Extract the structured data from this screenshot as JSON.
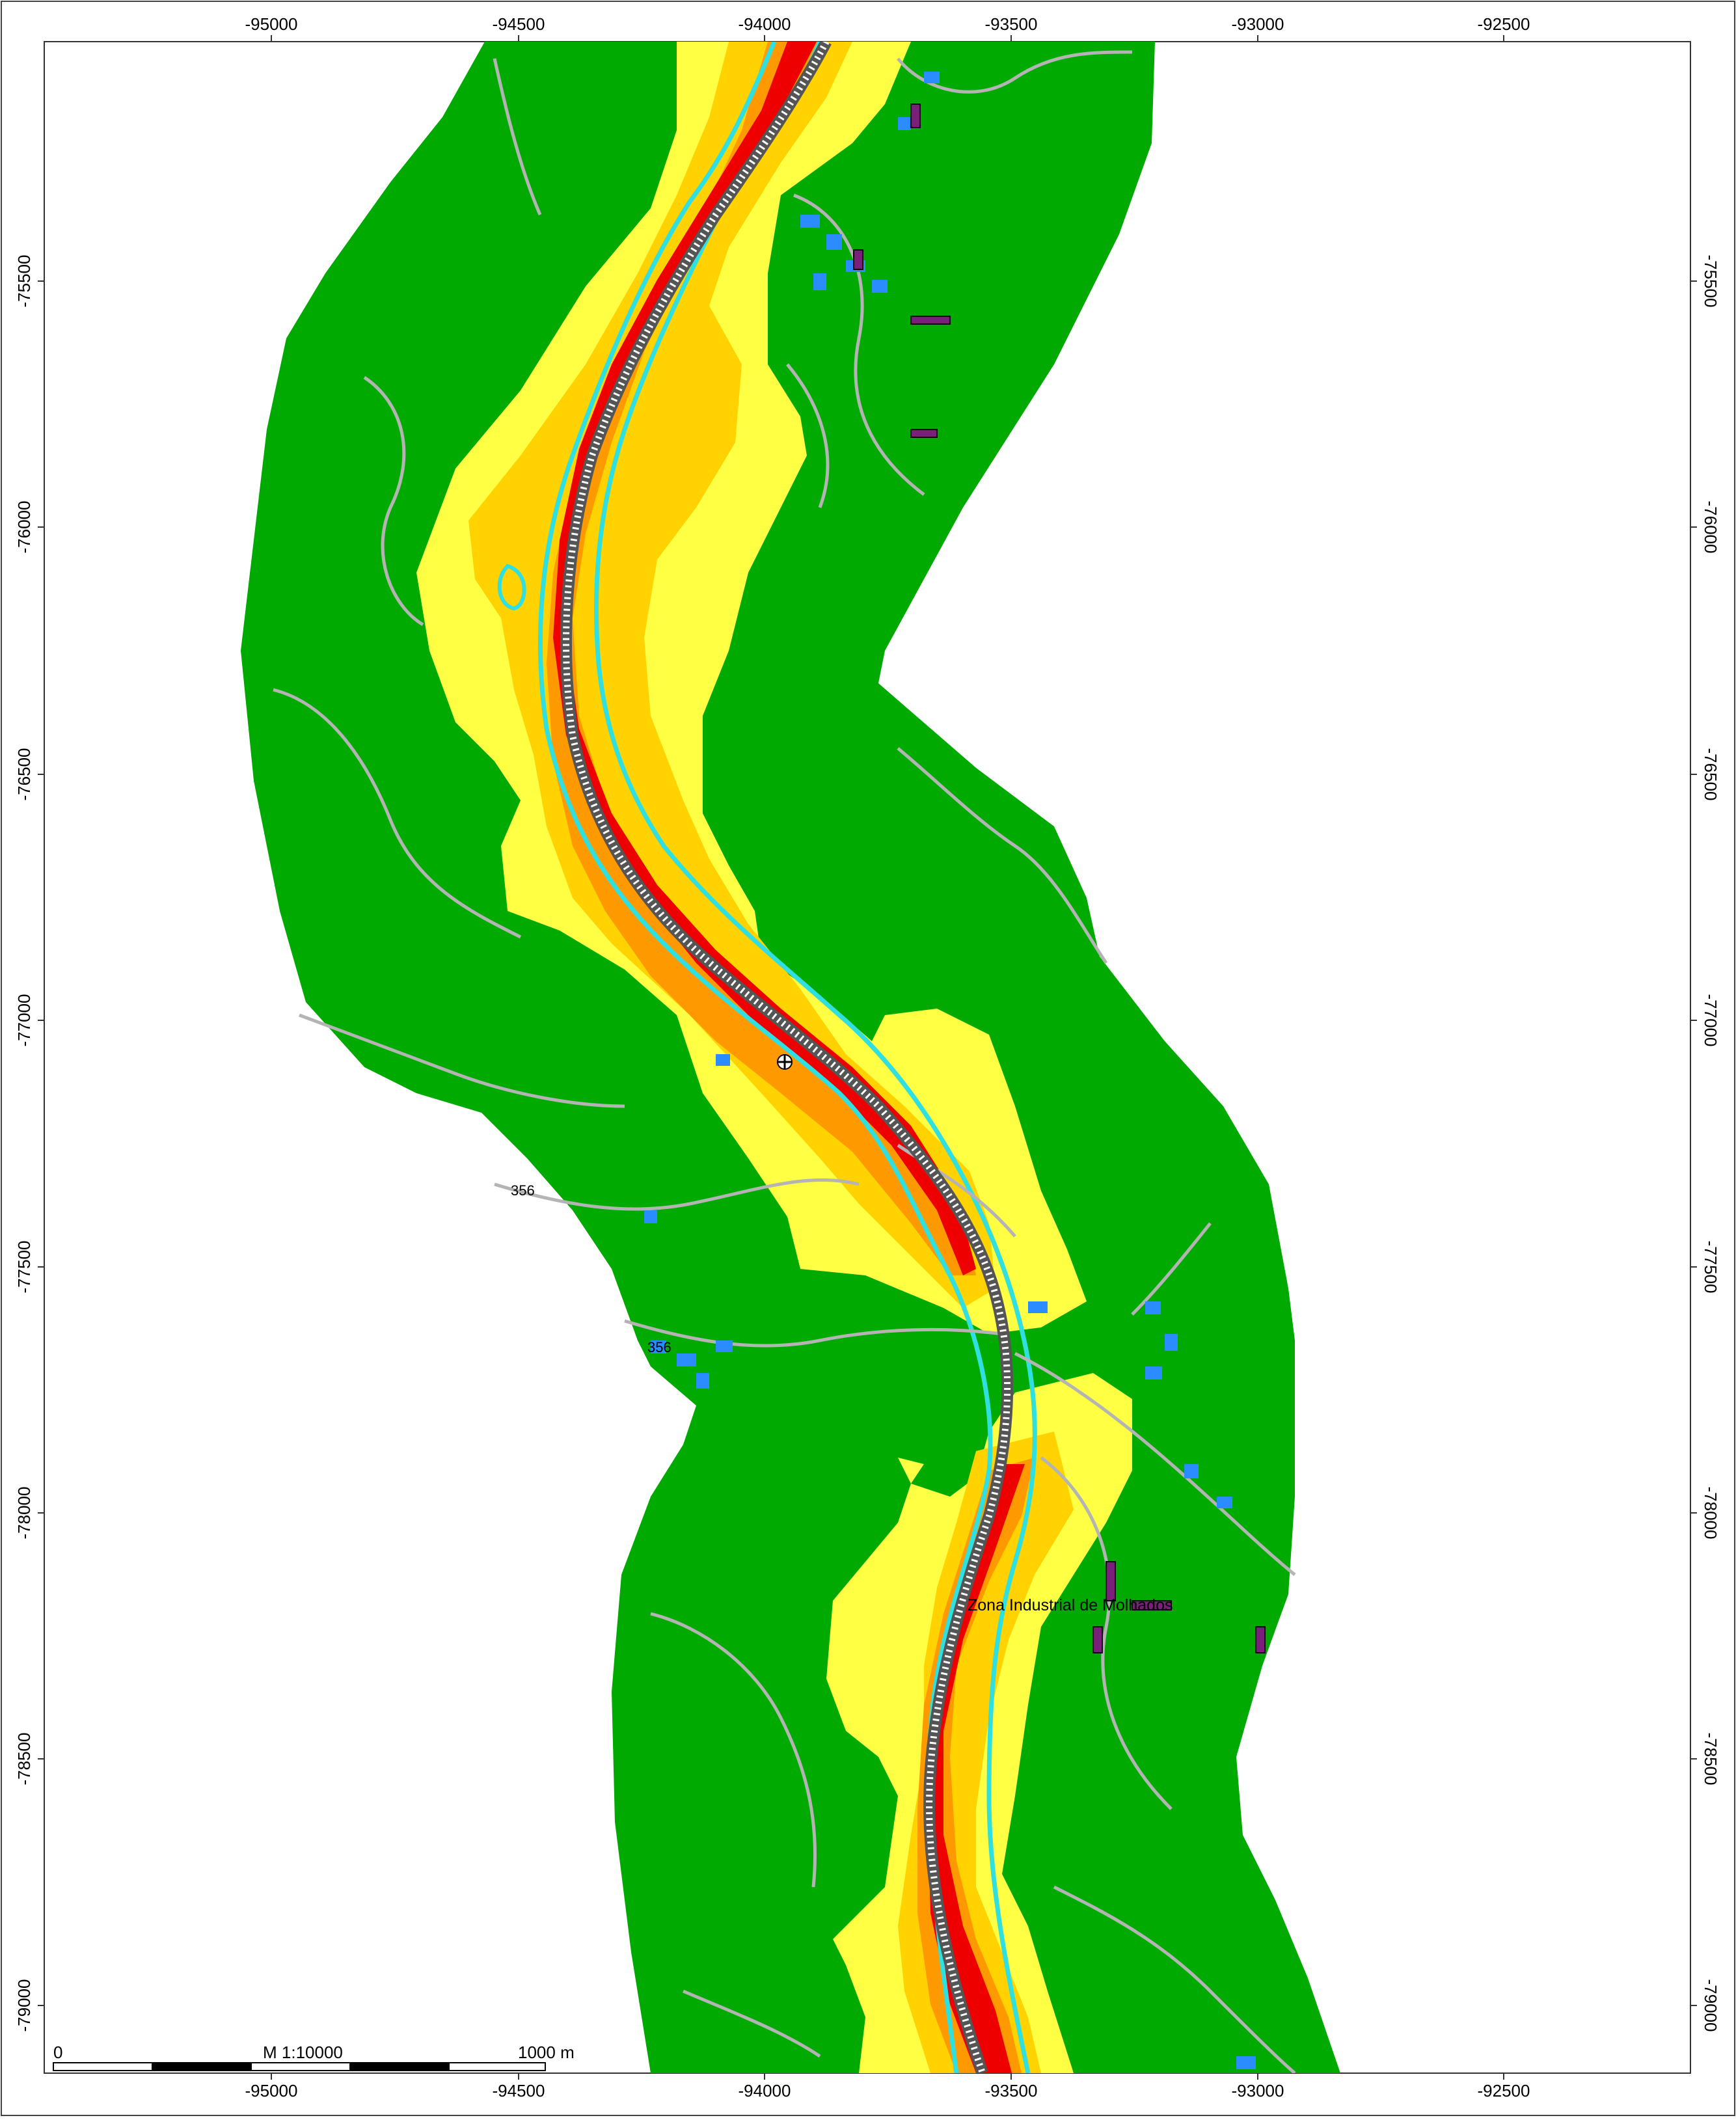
{
  "map": {
    "x_ticks": [
      "-95000",
      "-94500",
      "-94000",
      "-93500",
      "-93000",
      "-92500"
    ],
    "y_ticks": [
      "-75500",
      "-76000",
      "-76500",
      "-77000",
      "-77500",
      "-78000",
      "-78500",
      "-79000"
    ],
    "labels": {
      "zone": "Zona Industrial de Molhados",
      "route_a": "356",
      "route_b": "356"
    },
    "scalebar": {
      "start": "0",
      "scale": "M 1:10000",
      "end": "1000 m"
    },
    "colors": {
      "background_zone": "#00aa00",
      "band_yellow": "#ffff44",
      "band_gold": "#ffd200",
      "band_orange": "#ff9900",
      "band_red": "#ee0000",
      "waterline": "#30e0e0",
      "roads": "#b4b4b4",
      "buildings": "#2a8cff",
      "industrial": "#7a1f7a",
      "railway": "#555555"
    }
  }
}
